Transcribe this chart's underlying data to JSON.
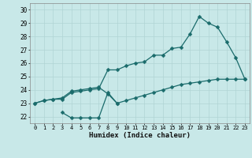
{
  "xlabel": "Humidex (Indice chaleur)",
  "xlim": [
    -0.5,
    23.5
  ],
  "ylim": [
    21.5,
    30.5
  ],
  "xticks": [
    0,
    1,
    2,
    3,
    4,
    5,
    6,
    7,
    8,
    9,
    10,
    11,
    12,
    13,
    14,
    15,
    16,
    17,
    18,
    19,
    20,
    21,
    22,
    23
  ],
  "yticks": [
    22,
    23,
    24,
    25,
    26,
    27,
    28,
    29,
    30
  ],
  "bg_color": "#c8e8e8",
  "line_color": "#1a6b6b",
  "grid_color": "#b0d4d4",
  "line1_x": [
    0,
    1,
    2,
    3,
    4,
    5,
    6,
    7,
    8,
    9,
    10,
    11,
    12,
    13,
    14,
    15,
    16,
    17,
    18,
    19,
    20,
    21,
    22,
    23
  ],
  "line1_y": [
    23.0,
    23.2,
    23.3,
    23.3,
    23.8,
    23.9,
    24.0,
    24.1,
    25.5,
    25.5,
    25.8,
    26.0,
    26.1,
    26.6,
    26.6,
    27.1,
    27.2,
    28.2,
    29.5,
    29.0,
    28.7,
    27.6,
    26.4,
    24.8
  ],
  "line2_x": [
    0,
    1,
    2,
    3,
    4,
    5,
    6,
    7,
    8,
    9,
    10,
    11,
    12,
    13,
    14,
    15,
    16,
    17,
    18,
    19,
    20,
    21,
    22,
    23
  ],
  "line2_y": [
    23.0,
    23.2,
    23.3,
    23.4,
    23.9,
    24.0,
    24.1,
    24.2,
    23.7,
    23.0,
    23.2,
    23.4,
    23.6,
    23.8,
    24.0,
    24.2,
    24.4,
    24.5,
    24.6,
    24.7,
    24.8,
    24.8,
    24.8,
    24.8
  ],
  "line3_x": [
    3,
    4,
    5,
    6,
    7,
    8,
    9
  ],
  "line3_y": [
    22.3,
    21.9,
    21.9,
    21.9,
    21.9,
    23.8,
    23.0
  ],
  "marker_size": 2.5,
  "line_width": 0.9,
  "tick_fontsize": 5.0,
  "xlabel_fontsize": 6.5
}
